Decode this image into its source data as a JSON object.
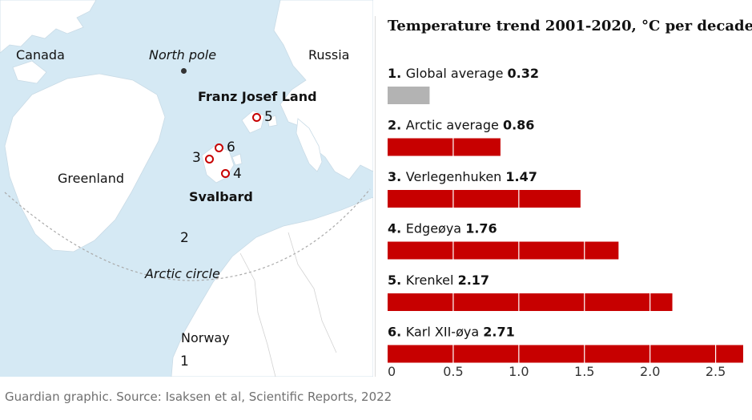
{
  "map": {
    "labels": {
      "canada": "Canada",
      "north_pole": "North pole",
      "russia": "Russia",
      "franz_josef_land": "Franz Josef Land",
      "greenland": "Greenland",
      "svalbard": "Svalbard",
      "arctic_circle": "Arctic circle",
      "norway": "Norway"
    },
    "site_numbers": {
      "s1": "1",
      "s2": "2",
      "s3": "3",
      "s4": "4",
      "s5": "5",
      "s6": "6"
    },
    "colors": {
      "sea": "#d5e9f4",
      "land": "#ffffff",
      "marker": "#c70000",
      "arctic_circle": "#aaaaaa"
    }
  },
  "chart_data": {
    "type": "bar",
    "orientation": "horizontal",
    "title": "Temperature trend 2001-2020, °C per decade",
    "categories": [
      {
        "number": "1.",
        "name": "Global average",
        "value_label": "0.32"
      },
      {
        "number": "2.",
        "name": "Arctic average",
        "value_label": "0.86"
      },
      {
        "number": "3.",
        "name": "Verlegenhuken",
        "value_label": "1.47"
      },
      {
        "number": "4.",
        "name": "Edgeøya",
        "value_label": "1.76"
      },
      {
        "number": "5.",
        "name": "Krenkel",
        "value_label": "2.17"
      },
      {
        "number": "6.",
        "name": "Karl XII-øya",
        "value_label": "2.71"
      }
    ],
    "values": [
      0.32,
      0.86,
      1.47,
      1.76,
      2.17,
      2.71
    ],
    "bar_colors": [
      "#b3b3b3",
      "#c70000",
      "#c70000",
      "#c70000",
      "#c70000",
      "#c70000"
    ],
    "xlim": [
      0,
      2.71
    ],
    "x_ticks": [
      0,
      0.5,
      1.0,
      1.5,
      2.0,
      2.5
    ],
    "x_tick_labels": [
      "0",
      "0.5",
      "1.0",
      "1.5",
      "2.0",
      "2.5"
    ],
    "grid": true
  },
  "footer": {
    "source": "Guardian graphic. Source: Isaksen et al, Scientific Reports, 2022"
  }
}
